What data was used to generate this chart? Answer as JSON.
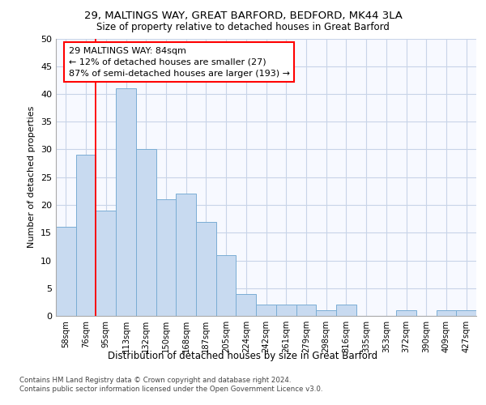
{
  "title1": "29, MALTINGS WAY, GREAT BARFORD, BEDFORD, MK44 3LA",
  "title2": "Size of property relative to detached houses in Great Barford",
  "xlabel": "Distribution of detached houses by size in Great Barford",
  "ylabel": "Number of detached properties",
  "categories": [
    "58sqm",
    "76sqm",
    "95sqm",
    "113sqm",
    "132sqm",
    "150sqm",
    "168sqm",
    "187sqm",
    "205sqm",
    "224sqm",
    "242sqm",
    "261sqm",
    "279sqm",
    "298sqm",
    "316sqm",
    "335sqm",
    "353sqm",
    "372sqm",
    "390sqm",
    "409sqm",
    "427sqm"
  ],
  "values": [
    16,
    29,
    19,
    41,
    30,
    21,
    22,
    17,
    11,
    4,
    2,
    2,
    2,
    1,
    2,
    0,
    0,
    1,
    0,
    1,
    1
  ],
  "bar_color": "#c8daf0",
  "bar_edge_color": "#7aadd4",
  "annotation_text_line1": "29 MALTINGS WAY: 84sqm",
  "annotation_text_line2": "← 12% of detached houses are smaller (27)",
  "annotation_text_line3": "87% of semi-detached houses are larger (193) →",
  "annotation_box_color": "white",
  "annotation_box_edge_color": "red",
  "vline_color": "red",
  "vline_x": 1.5,
  "ylim": [
    0,
    50
  ],
  "yticks": [
    0,
    5,
    10,
    15,
    20,
    25,
    30,
    35,
    40,
    45,
    50
  ],
  "footnote1": "Contains HM Land Registry data © Crown copyright and database right 2024.",
  "footnote2": "Contains public sector information licensed under the Open Government Licence v3.0.",
  "bg_color": "#ffffff",
  "plot_bg_color": "#f7f9ff",
  "grid_color": "#c8d4e8"
}
